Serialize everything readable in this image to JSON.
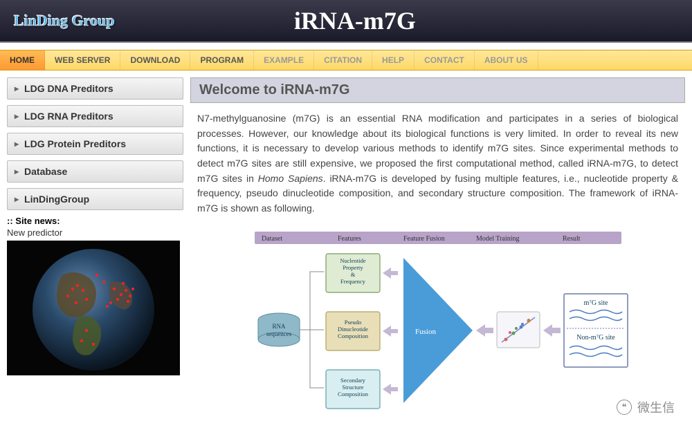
{
  "header": {
    "logo": "LinDing Group",
    "title": "iRNA-m7G"
  },
  "nav": {
    "items": [
      {
        "label": "HOME",
        "active": true
      },
      {
        "label": "WEB SERVER"
      },
      {
        "label": "DOWNLOAD"
      },
      {
        "label": "PROGRAM"
      },
      {
        "label": "EXAMPLE",
        "faded": true
      },
      {
        "label": "CITATION",
        "faded": true
      },
      {
        "label": "HELP",
        "faded": true
      },
      {
        "label": "CONTACT",
        "faded": true
      },
      {
        "label": "ABOUT US",
        "faded": true
      }
    ]
  },
  "sidebar": {
    "buttons": [
      "LDG DNA Preditors",
      "LDG RNA Preditors",
      "LDG Protein Preditors",
      "Database",
      "LinDingGroup"
    ],
    "news_label": ":: Site news:",
    "news_item": "New predictor"
  },
  "content": {
    "heading": "Welcome to iRNA-m7G",
    "body_pre": "N7-methylguanosine (m7G) is an essential RNA modification and participates in a series of biological processes. However, our knowledge about its biological functions is very limited. In order to reveal its new functions, it is necessary to develop various methods to identify m7G sites. Since experimental methods to detect m7G sites are still expensive, we proposed the first computational method, called iRNA-m7G, to detect m7G sites in ",
    "body_em": "Homo Sapiens",
    "body_post": ". iRNA-m7G is developed by fusing multiple features, i.e., nucleotide property & frequency, pseudo dinucleotide composition, and secondary structure composition. The framework of iRNA-m7G is shown as following."
  },
  "diagram": {
    "stage_bar_color": "#b8a3c9",
    "stage_labels": [
      "Dataset",
      "Features",
      "Feature Fusion",
      "Model Training",
      "Result"
    ],
    "dataset_label": "RNA\nsequences",
    "dataset_fill": "#8fb9c9",
    "feature_boxes": [
      {
        "label": "Nucleotide\nProperty\n&\nFrequency",
        "fill": "#dfecd3",
        "stroke": "#7a9a5e"
      },
      {
        "label": "Pseudo\nDinucleotide\nComposition",
        "fill": "#e8dfb8",
        "stroke": "#b0a060"
      },
      {
        "label": "Secondary\nStructure\nComposition",
        "fill": "#d8eef0",
        "stroke": "#5fa0a8"
      }
    ],
    "fusion_label": "Fusion",
    "fusion_fill": "#4a9cd8",
    "result_labels": [
      "m⁷G site",
      "Non-m⁷G site"
    ],
    "arrow_color": "#c5b8d4",
    "result_border": "#6a7aa8"
  },
  "watermark": {
    "text": "微生信"
  }
}
